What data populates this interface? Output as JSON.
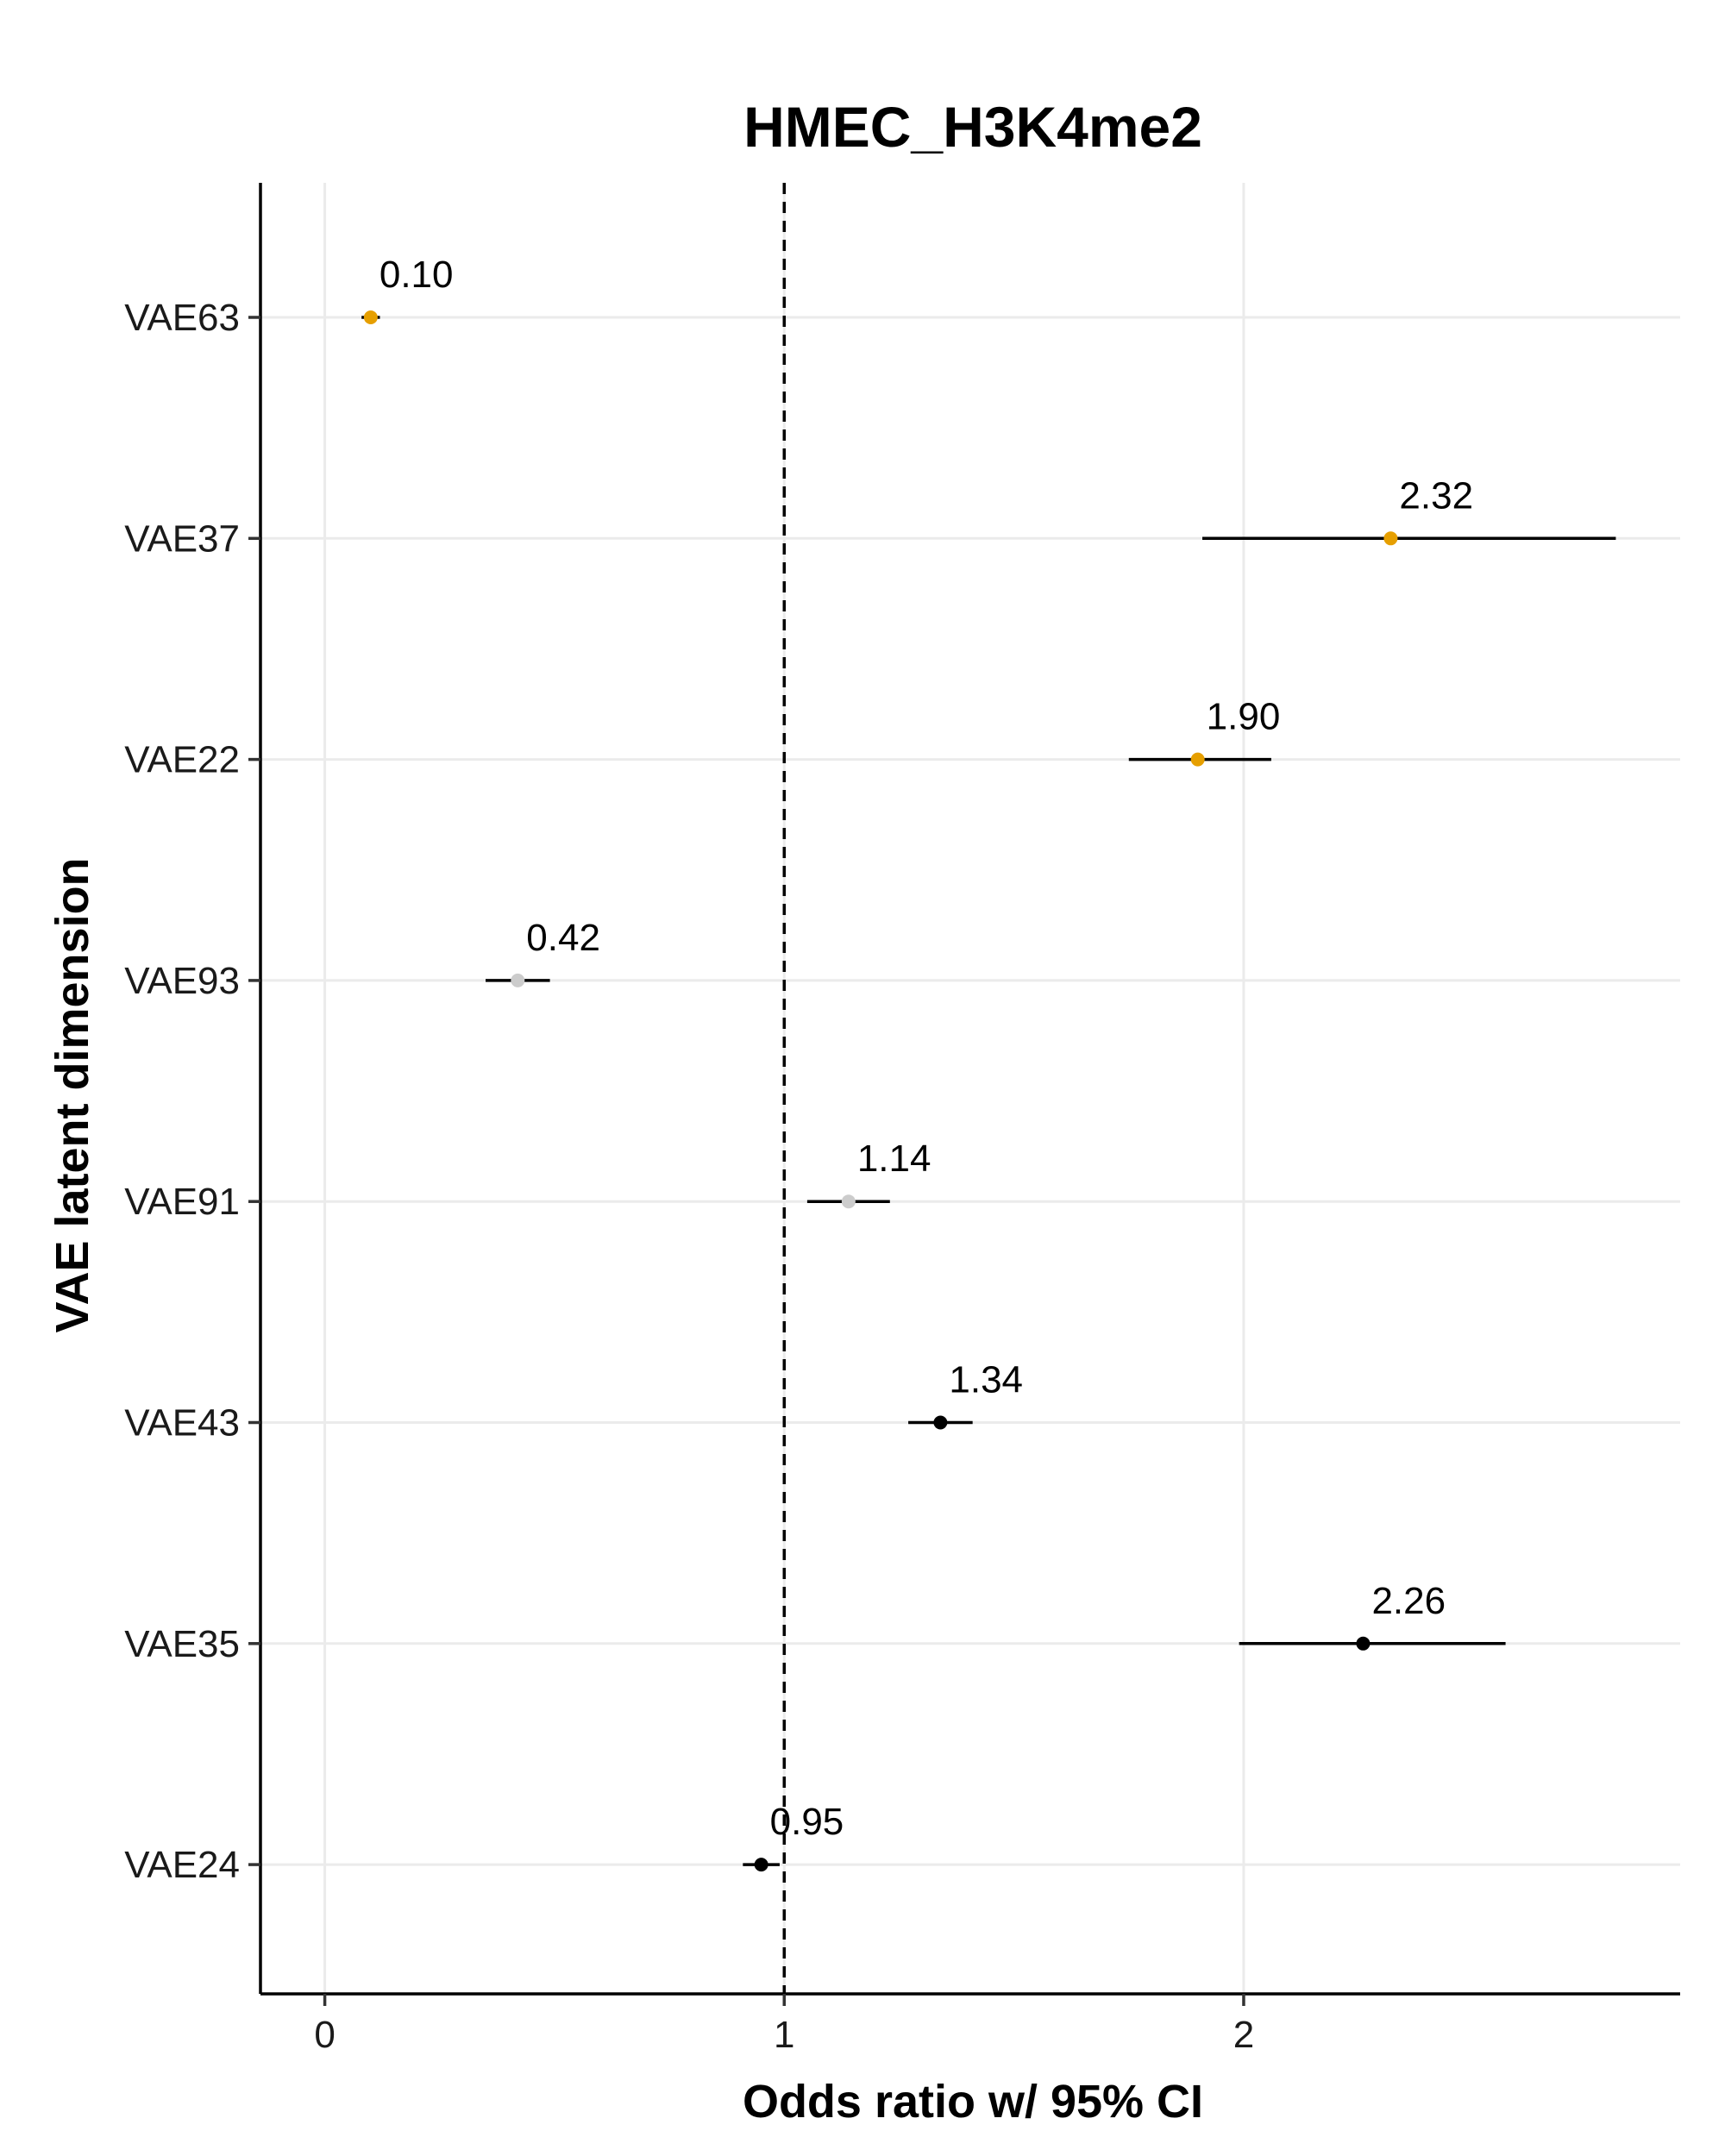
{
  "chart_data": {
    "type": "forest",
    "title": "HMEC_H3K4me2",
    "xlabel": "Odds ratio w/ 95% CI",
    "ylabel": "VAE latent dimension",
    "xlim": [
      -0.14,
      2.95
    ],
    "xticks": [
      0,
      1,
      2
    ],
    "xtick_labels": [
      "0",
      "1",
      "2"
    ],
    "reference_line": 1,
    "grid": true,
    "colors": {
      "orange": "#E69F00",
      "grey": "#CCCCCC",
      "black": "#000000",
      "grid": "#EBEBEB"
    },
    "points": [
      {
        "label": "VAE63",
        "or": 0.1,
        "lo": 0.08,
        "hi": 0.12,
        "text": "0.10",
        "color": "#E69F00"
      },
      {
        "label": "VAE37",
        "or": 2.32,
        "lo": 1.91,
        "hi": 2.81,
        "text": "2.32",
        "color": "#E69F00"
      },
      {
        "label": "VAE22",
        "or": 1.9,
        "lo": 1.75,
        "hi": 2.06,
        "text": "1.90",
        "color": "#E69F00"
      },
      {
        "label": "VAE93",
        "or": 0.42,
        "lo": 0.35,
        "hi": 0.49,
        "text": "0.42",
        "color": "#CCCCCC"
      },
      {
        "label": "VAE91",
        "or": 1.14,
        "lo": 1.05,
        "hi": 1.23,
        "text": "1.14",
        "color": "#CCCCCC"
      },
      {
        "label": "VAE43",
        "or": 1.34,
        "lo": 1.27,
        "hi": 1.41,
        "text": "1.34",
        "color": "#000000"
      },
      {
        "label": "VAE35",
        "or": 2.26,
        "lo": 1.99,
        "hi": 2.57,
        "text": "2.26",
        "color": "#000000"
      },
      {
        "label": "VAE24",
        "or": 0.95,
        "lo": 0.91,
        "hi": 0.99,
        "text": "0.95",
        "color": "#000000"
      }
    ]
  }
}
